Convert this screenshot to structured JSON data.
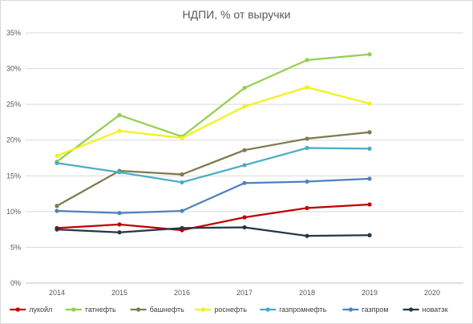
{
  "chart_data": {
    "type": "line",
    "title": "НДПИ, % от выручки",
    "categories": [
      "2014",
      "2015",
      "2016",
      "2017",
      "2018",
      "2019",
      "2020"
    ],
    "y_ticks": [
      "0%",
      "5%",
      "10%",
      "15%",
      "20%",
      "25%",
      "30%",
      "35%"
    ],
    "ylim": [
      0,
      35
    ],
    "grid": "horizontal",
    "legend_position": "bottom",
    "series": [
      {
        "name": "лукойл",
        "color": "#c00000",
        "values": [
          7.7,
          8.2,
          7.4,
          9.2,
          10.5,
          11.0,
          null
        ]
      },
      {
        "name": "татнефть",
        "color": "#92d050",
        "values": [
          17.0,
          23.5,
          20.5,
          27.3,
          31.2,
          32.0,
          null
        ]
      },
      {
        "name": "башнефть",
        "color": "#7f7a4c",
        "values": [
          10.8,
          15.7,
          15.2,
          18.6,
          20.2,
          21.1,
          null
        ]
      },
      {
        "name": "роснефть",
        "color": "#f2f21a",
        "values": [
          17.8,
          21.3,
          20.3,
          24.7,
          27.4,
          25.1,
          null
        ]
      },
      {
        "name": "газпромнефть",
        "color": "#4bacc6",
        "values": [
          16.8,
          15.5,
          14.1,
          16.5,
          18.9,
          18.8,
          null
        ]
      },
      {
        "name": "газпром",
        "color": "#4f81bd",
        "values": [
          10.1,
          9.8,
          10.1,
          14.0,
          14.2,
          14.6,
          null
        ]
      },
      {
        "name": "новатэк",
        "color": "#243746",
        "values": [
          7.5,
          7.1,
          7.7,
          7.8,
          6.6,
          6.7,
          null
        ]
      }
    ]
  }
}
